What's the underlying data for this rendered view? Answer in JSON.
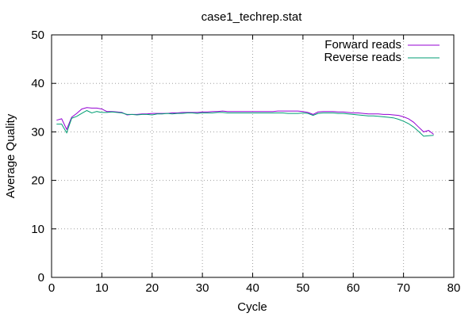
{
  "chart_data": {
    "type": "line",
    "title": "case1_techrep.stat",
    "xlabel": "Cycle",
    "ylabel": "Average Quality",
    "xlim": [
      0,
      80
    ],
    "ylim": [
      0,
      50
    ],
    "xticks": [
      0,
      10,
      20,
      30,
      40,
      50,
      60,
      70,
      80
    ],
    "yticks": [
      0,
      10,
      20,
      30,
      40,
      50
    ],
    "grid": true,
    "legend_position": "top-right",
    "series": [
      {
        "name": "Forward reads",
        "color": "#9400d3",
        "x": [
          1,
          2,
          3,
          4,
          5,
          6,
          7,
          8,
          9,
          10,
          11,
          12,
          13,
          14,
          15,
          16,
          17,
          18,
          19,
          20,
          21,
          22,
          23,
          24,
          25,
          26,
          27,
          28,
          29,
          30,
          31,
          32,
          33,
          34,
          35,
          36,
          37,
          38,
          39,
          40,
          41,
          42,
          43,
          44,
          45,
          46,
          47,
          48,
          49,
          50,
          51,
          52,
          53,
          54,
          55,
          56,
          57,
          58,
          59,
          60,
          61,
          62,
          63,
          64,
          65,
          66,
          67,
          68,
          69,
          70,
          71,
          72,
          73,
          74,
          75,
          76
        ],
        "y": [
          32.4,
          32.7,
          30.5,
          33.0,
          33.8,
          34.7,
          35.0,
          34.9,
          34.9,
          34.7,
          34.2,
          34.2,
          34.1,
          34.0,
          33.5,
          33.6,
          33.6,
          33.7,
          33.7,
          33.8,
          33.8,
          33.8,
          33.8,
          33.9,
          33.9,
          34.0,
          34.0,
          34.0,
          34.0,
          34.1,
          34.1,
          34.2,
          34.2,
          34.3,
          34.2,
          34.2,
          34.2,
          34.2,
          34.2,
          34.2,
          34.2,
          34.2,
          34.2,
          34.2,
          34.3,
          34.3,
          34.3,
          34.3,
          34.3,
          34.2,
          34.0,
          33.6,
          34.1,
          34.2,
          34.2,
          34.2,
          34.1,
          34.1,
          34.0,
          33.9,
          33.9,
          33.8,
          33.7,
          33.7,
          33.7,
          33.6,
          33.6,
          33.5,
          33.4,
          33.1,
          32.7,
          32.0,
          31.0,
          30.0,
          30.3,
          29.5
        ]
      },
      {
        "name": "Reverse reads",
        "color": "#009e73",
        "x": [
          1,
          2,
          3,
          4,
          5,
          6,
          7,
          8,
          9,
          10,
          11,
          12,
          13,
          14,
          15,
          16,
          17,
          18,
          19,
          20,
          21,
          22,
          23,
          24,
          25,
          26,
          27,
          28,
          29,
          30,
          31,
          32,
          33,
          34,
          35,
          36,
          37,
          38,
          39,
          40,
          41,
          42,
          43,
          44,
          45,
          46,
          47,
          48,
          49,
          50,
          51,
          52,
          53,
          54,
          55,
          56,
          57,
          58,
          59,
          60,
          61,
          62,
          63,
          64,
          65,
          66,
          67,
          68,
          69,
          70,
          71,
          72,
          73,
          74,
          75,
          76
        ],
        "y": [
          31.6,
          31.6,
          29.8,
          32.8,
          33.2,
          33.8,
          34.4,
          33.9,
          34.2,
          34.0,
          34.0,
          34.1,
          34.0,
          33.9,
          33.6,
          33.6,
          33.5,
          33.6,
          33.6,
          33.5,
          33.7,
          33.7,
          33.8,
          33.7,
          33.8,
          33.8,
          33.9,
          33.9,
          33.8,
          33.9,
          33.9,
          33.9,
          34.0,
          34.0,
          33.9,
          33.9,
          33.9,
          33.9,
          33.9,
          33.9,
          33.9,
          33.9,
          33.9,
          33.9,
          33.9,
          33.9,
          33.8,
          33.8,
          33.8,
          33.9,
          33.8,
          33.4,
          33.8,
          33.9,
          33.9,
          33.9,
          33.8,
          33.8,
          33.7,
          33.6,
          33.5,
          33.4,
          33.3,
          33.3,
          33.2,
          33.1,
          33.0,
          32.9,
          32.6,
          32.2,
          31.7,
          31.0,
          30.1,
          29.1,
          29.2,
          29.3
        ]
      }
    ]
  }
}
